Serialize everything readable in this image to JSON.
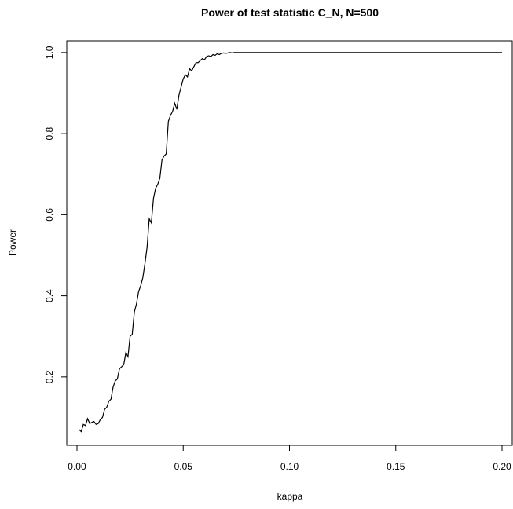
{
  "chart_data": {
    "type": "line",
    "title": "Power of test statistic C_N, N=500",
    "xlabel": "kappa",
    "ylabel": "Power",
    "xlim": [
      -0.0048,
      0.2048
    ],
    "ylim": [
      0.0312,
      1.0288
    ],
    "x_ticks": [
      0.0,
      0.05,
      0.1,
      0.15,
      0.2
    ],
    "x_tick_labels": [
      "0.00",
      "0.05",
      "0.10",
      "0.15",
      "0.20"
    ],
    "y_ticks": [
      0.2,
      0.4,
      0.6,
      0.8,
      1.0
    ],
    "y_tick_labels": [
      "0.2",
      "0.4",
      "0.6",
      "0.8",
      "1.0"
    ],
    "grid": false,
    "line_color": "#000000",
    "series": [
      {
        "x": [
          0.001,
          0.002,
          0.003,
          0.004,
          0.005,
          0.006,
          0.007,
          0.008,
          0.009,
          0.01,
          0.011,
          0.012,
          0.013,
          0.014,
          0.015,
          0.016,
          0.017,
          0.018,
          0.019,
          0.02,
          0.021,
          0.022,
          0.023,
          0.024,
          0.025,
          0.026,
          0.027,
          0.028,
          0.029,
          0.03,
          0.031,
          0.032,
          0.033,
          0.034,
          0.035,
          0.036,
          0.037,
          0.038,
          0.039,
          0.04,
          0.041,
          0.042,
          0.043,
          0.044,
          0.045,
          0.046,
          0.047,
          0.048,
          0.049,
          0.05,
          0.051,
          0.052,
          0.053,
          0.054,
          0.055,
          0.056,
          0.057,
          0.058,
          0.059,
          0.06,
          0.061,
          0.062,
          0.063,
          0.064,
          0.065,
          0.066,
          0.067,
          0.068,
          0.069,
          0.07,
          0.071,
          0.072,
          0.073,
          0.074,
          0.075,
          0.08,
          0.1,
          0.15,
          0.2
        ],
        "y": [
          0.07,
          0.065,
          0.083,
          0.08,
          0.097,
          0.085,
          0.088,
          0.09,
          0.083,
          0.085,
          0.095,
          0.1,
          0.12,
          0.125,
          0.14,
          0.145,
          0.175,
          0.19,
          0.195,
          0.22,
          0.225,
          0.23,
          0.26,
          0.25,
          0.3,
          0.305,
          0.36,
          0.38,
          0.41,
          0.425,
          0.445,
          0.48,
          0.52,
          0.59,
          0.58,
          0.64,
          0.665,
          0.675,
          0.69,
          0.735,
          0.745,
          0.75,
          0.83,
          0.845,
          0.855,
          0.875,
          0.86,
          0.895,
          0.915,
          0.935,
          0.945,
          0.94,
          0.96,
          0.955,
          0.965,
          0.975,
          0.975,
          0.98,
          0.985,
          0.982,
          0.99,
          0.992,
          0.99,
          0.995,
          0.993,
          0.997,
          0.995,
          0.998,
          0.999,
          0.998,
          0.999,
          1.0,
          0.999,
          1.0,
          1.0,
          1.0,
          1.0,
          1.0,
          1.0
        ]
      }
    ]
  }
}
